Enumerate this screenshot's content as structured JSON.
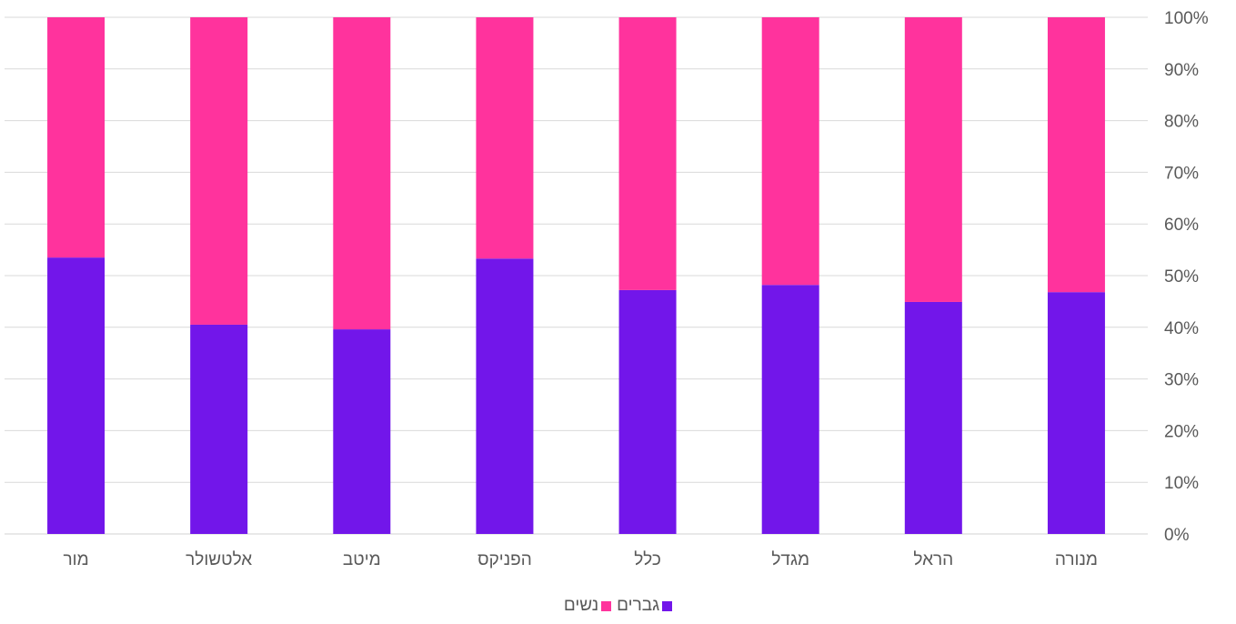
{
  "chart_data": {
    "type": "bar",
    "stacked": true,
    "percent": true,
    "categories": [
      "מנורה",
      "הראל",
      "מגדל",
      "כלל",
      "הפניקס",
      "מיטב",
      "אלטשולר",
      "מור"
    ],
    "series": [
      {
        "name": "גברים",
        "color": "#7216EA",
        "values": [
          46.8,
          44.9,
          48.2,
          47.2,
          53.3,
          39.6,
          40.5,
          53.5
        ]
      },
      {
        "name": "נשים",
        "color": "#FF339D",
        "values": [
          53.2,
          55.1,
          51.8,
          52.8,
          46.7,
          60.4,
          59.5,
          46.5
        ]
      }
    ],
    "yaxis": {
      "position": "right",
      "ylim": [
        0,
        100
      ],
      "ticks": [
        "0%",
        "10%",
        "20%",
        "30%",
        "40%",
        "50%",
        "60%",
        "70%",
        "80%",
        "90%",
        "100%"
      ]
    },
    "grid": true,
    "category_order": "right-to-left",
    "legend": {
      "placement": "bottom"
    }
  }
}
